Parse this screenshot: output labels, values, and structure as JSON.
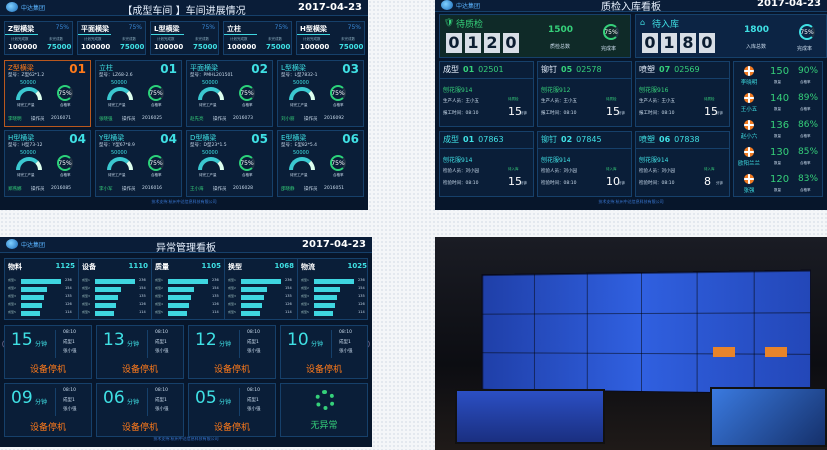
{
  "production": {
    "title": "【成型车间 】车间进展情况",
    "date": "2017-04-23",
    "logo": "中达集团",
    "summary": [
      {
        "name": "Z型横梁",
        "pct": "75%",
        "plan_label": "计划完成数",
        "plan": "100000",
        "done_label": "未完成数",
        "done": "75000"
      },
      {
        "name": "平面横梁",
        "pct": "75%",
        "plan_label": "计划完成数",
        "plan": "100000",
        "done_label": "未完成数",
        "done": "75000"
      },
      {
        "name": "L型横梁",
        "pct": "75%",
        "plan_label": "计划完成数",
        "plan": "100000",
        "done_label": "未完成数",
        "done": "75000"
      },
      {
        "name": "立柱",
        "pct": "75%",
        "plan_label": "计划完成数",
        "plan": "100000",
        "done_label": "未完成数",
        "done": "75000"
      },
      {
        "name": "H型横梁",
        "pct": "75%",
        "plan_label": "计划完成数",
        "plan": "100000",
        "done_label": "未完成数",
        "done": "75000"
      }
    ],
    "cards": [
      {
        "name": "Z型横梁",
        "no": "01",
        "model": "型号：Z型62*1.2",
        "target": "50000",
        "gauge_label": "待完工产量",
        "rate": "75%",
        "rate_label": "合格率",
        "operator": "李晓明",
        "role": "操作员",
        "id": "2016071",
        "active": true
      },
      {
        "name": "立柱",
        "no": "01",
        "model": "型号：LZ68-2.6",
        "target": "50000",
        "gauge_label": "待完工产量",
        "rate": "75%",
        "rate_label": "合格率",
        "operator": "张晓强",
        "role": "操作员",
        "id": "2016025"
      },
      {
        "name": "平面横梁",
        "no": "02",
        "model": "型号：PMHL201501",
        "target": "50000",
        "gauge_label": "待完工产量",
        "rate": "75%",
        "rate_label": "合格率",
        "operator": "赵先亮",
        "role": "操作员",
        "id": "2016073"
      },
      {
        "name": "L型横梁",
        "no": "03",
        "model": "型号：L型7832-1",
        "target": "50000",
        "gauge_label": "待完工产量",
        "rate": "75%",
        "rate_label": "合格率",
        "operator": "刘小丽",
        "role": "操作员",
        "id": "2016092"
      },
      {
        "name": "H型横梁",
        "no": "04",
        "model": "型号：H型73-12",
        "target": "50000",
        "gauge_label": "待完工产量",
        "rate": "75%",
        "rate_label": "合格率",
        "operator": "郑燕娜",
        "role": "操作员",
        "id": "2016085"
      },
      {
        "name": "Y型横梁",
        "no": "04",
        "model": "型号：Y型67*8.9",
        "target": "50000",
        "gauge_label": "待完工产量",
        "rate": "75%",
        "rate_label": "合格率",
        "operator": "李小军",
        "role": "操作员",
        "id": "2016016"
      },
      {
        "name": "D型横梁",
        "no": "05",
        "model": "型号：D型23*1.5",
        "target": "50000",
        "gauge_label": "待完工产量",
        "rate": "75%",
        "rate_label": "合格率",
        "operator": "王小海",
        "role": "操作员",
        "id": "2016028"
      },
      {
        "name": "E型横梁",
        "no": "06",
        "model": "型号：E型82*5.4",
        "target": "50000",
        "gauge_label": "待完工产量",
        "rate": "75%",
        "rate_label": "合格率",
        "operator": "邵晓静",
        "role": "操作员",
        "id": "2016051"
      }
    ],
    "footer": "技术支持:杭州中达信息科技有限公司"
  },
  "quality": {
    "title": "质检入库看板",
    "date": "2017-04-23",
    "logo": "中达集团",
    "pending_qc": {
      "label": "待质检",
      "digits": [
        "0",
        "1",
        "2",
        "0"
      ],
      "total": "1500",
      "total_label": "质检总数",
      "rate": "75%",
      "rate_label": "完成率"
    },
    "pending_store": {
      "label": "待入库",
      "digits": [
        "0",
        "1",
        "8",
        "0"
      ],
      "total": "1800",
      "total_label": "入库总数",
      "rate": "75%",
      "rate_label": "完成率"
    },
    "cards": [
      {
        "type": "成型",
        "line": "01",
        "code": "02501",
        "part": "刨花服914",
        "l1": "生产人员：王小五",
        "l2": "报工时间：08:10",
        "status": "待质检",
        "mins": "15",
        "unit": "分钟"
      },
      {
        "type": "铆钉",
        "line": "05",
        "code": "02578",
        "part": "刨花服912",
        "l1": "生产人员：王小五",
        "l2": "报工时间：08:10",
        "status": "待质检",
        "mins": "15",
        "unit": "分钟"
      },
      {
        "type": "喷塑",
        "line": "07",
        "code": "02569",
        "part": "刨花服916",
        "l1": "生产人员：王小五",
        "l2": "报工时间：08:10",
        "status": "待质检",
        "mins": "15",
        "unit": "分钟"
      },
      {
        "type": "成型",
        "line": "01",
        "code": "07863",
        "part": "刨花服914",
        "l1": "检验人员：刘小园",
        "l2": "检验时间：08:10",
        "status": "待入库",
        "mins": "15",
        "unit": "分钟",
        "blue": true
      },
      {
        "type": "铆钉",
        "line": "02",
        "code": "07845",
        "part": "刨花服914",
        "l1": "检验人员：刘小园",
        "l2": "检验时间：08:10",
        "status": "待入库",
        "mins": "10",
        "unit": "分钟",
        "blue": true
      },
      {
        "type": "喷塑",
        "line": "06",
        "code": "07838",
        "part": "刨花服914",
        "l1": "检验人员：刘小园",
        "l2": "检验时间：08:10",
        "status": "待入库",
        "mins": "8",
        "unit": "分钟",
        "blue": true
      }
    ],
    "ranking": [
      {
        "name": "李晓明",
        "qty": "150",
        "qty_label": "数量",
        "rate": "90%",
        "rate_label": "合格率"
      },
      {
        "name": "王小五",
        "qty": "140",
        "qty_label": "数量",
        "rate": "89%",
        "rate_label": "合格率"
      },
      {
        "name": "赵小六",
        "qty": "136",
        "qty_label": "数量",
        "rate": "86%",
        "rate_label": "合格率"
      },
      {
        "name": "欧阳兰兰",
        "qty": "130",
        "qty_label": "数量",
        "rate": "85%",
        "rate_label": "合格率"
      },
      {
        "name": "张强",
        "qty": "120",
        "qty_label": "数量",
        "rate": "83%",
        "rate_label": "合格率"
      }
    ],
    "footer": "技术支持:杭州中达信息科技有限公司"
  },
  "anomaly": {
    "title": "异常管理看板",
    "date": "2017-04-23",
    "logo": "中达集团",
    "categories": [
      {
        "name": "物料",
        "total": "1125"
      },
      {
        "name": "设备",
        "total": "1110"
      },
      {
        "name": "质量",
        "total": "1105"
      },
      {
        "name": "换型",
        "total": "1068"
      },
      {
        "name": "物流",
        "total": "1025"
      }
    ],
    "bar_labels": [
      "成型1",
      "成型2",
      "成型3",
      "成型4",
      "成型5"
    ],
    "bar_values": [
      236,
      154,
      135,
      126,
      114
    ],
    "tiles": [
      {
        "mins": "15",
        "unit": "分钟",
        "time": "08:10",
        "line": "成型1",
        "person": "张小强",
        "status": "设备停机"
      },
      {
        "mins": "13",
        "unit": "分钟",
        "time": "08:10",
        "line": "成型1",
        "person": "张小强",
        "status": "设备停机"
      },
      {
        "mins": "12",
        "unit": "分钟",
        "time": "08:10",
        "line": "成型1",
        "person": "张小强",
        "status": "设备停机"
      },
      {
        "mins": "10",
        "unit": "分钟",
        "time": "08:10",
        "line": "成型1",
        "person": "张小强",
        "status": "设备停机"
      },
      {
        "mins": "09",
        "unit": "分钟",
        "time": "08:10",
        "line": "成型1",
        "person": "张小强",
        "status": "设备停机"
      },
      {
        "mins": "06",
        "unit": "分钟",
        "time": "08:10",
        "line": "成型1",
        "person": "张小强",
        "status": "设备停机"
      },
      {
        "mins": "05",
        "unit": "分钟",
        "time": "08:10",
        "line": "成型1",
        "person": "张小强",
        "status": "设备停机"
      }
    ],
    "normal_label": "无异常",
    "footer": "技术支持:杭州中达信息科技有限公司"
  },
  "colors": {
    "bg": "#07162b",
    "cyan": "#3fe0e4",
    "green": "#35d07a",
    "orange": "#ff7a1a"
  }
}
